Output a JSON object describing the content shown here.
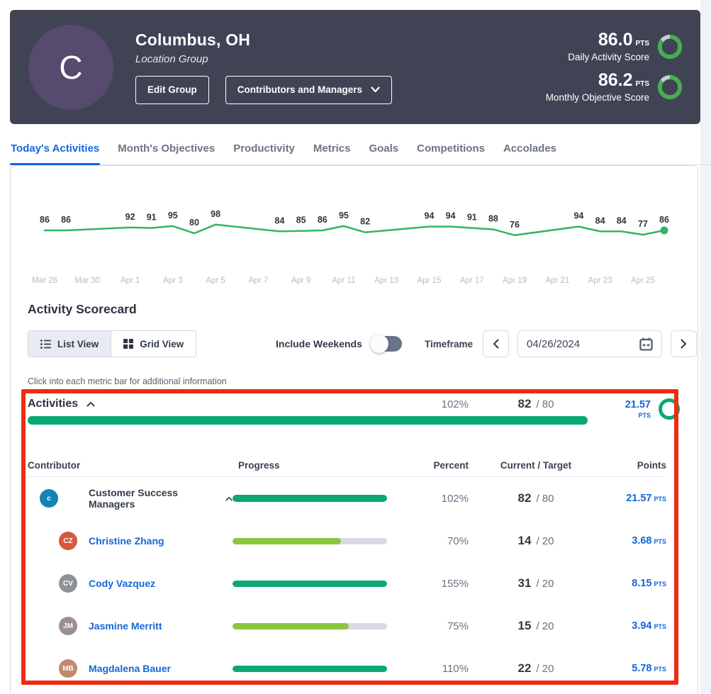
{
  "header": {
    "avatar_letter": "C",
    "title": "Columbus, OH",
    "subtitle": "Location Group",
    "edit_button": "Edit Group",
    "dropdown_button": "Contributors and Managers",
    "scores": [
      {
        "value": "86.0",
        "unit": "PTS",
        "label": "Daily Activity Score",
        "ring_percent": 86
      },
      {
        "value": "86.2",
        "unit": "PTS",
        "label": "Monthly Objective Score",
        "ring_percent": 86
      }
    ]
  },
  "tabs": [
    {
      "label": "Today's Activities",
      "active": true
    },
    {
      "label": "Month's Objectives",
      "active": false
    },
    {
      "label": "Productivity",
      "active": false
    },
    {
      "label": "Metrics",
      "active": false
    },
    {
      "label": "Goals",
      "active": false
    },
    {
      "label": "Competitions",
      "active": false
    },
    {
      "label": "Accolades",
      "active": false
    }
  ],
  "chart_data": {
    "type": "line",
    "x": [
      "Mar 28",
      "Mar 29",
      "Apr 1",
      "Apr 2",
      "Apr 3",
      "Apr 4",
      "Apr 5",
      "Apr 8",
      "Apr 9",
      "Apr 10",
      "Apr 11",
      "Apr 12",
      "Apr 15",
      "Apr 16",
      "Apr 17",
      "Apr 18",
      "Apr 19",
      "Apr 22",
      "Apr 23",
      "Apr 24",
      "Apr 25",
      "Apr 26"
    ],
    "day_offsets": [
      0,
      1,
      4,
      5,
      6,
      7,
      8,
      11,
      12,
      13,
      14,
      15,
      18,
      19,
      20,
      21,
      22,
      25,
      26,
      27,
      28,
      29
    ],
    "values": [
      86,
      86,
      92,
      91,
      95,
      80,
      98,
      84,
      85,
      86,
      95,
      82,
      94,
      94,
      91,
      88,
      76,
      94,
      84,
      84,
      77,
      86
    ],
    "axis_labels": [
      "Mar 28",
      "Mar 30",
      "Apr 1",
      "Apr 3",
      "Apr 5",
      "Apr 7",
      "Apr 9",
      "Apr 11",
      "Apr 13",
      "Apr 15",
      "Apr 17",
      "Apr 19",
      "Apr 21",
      "Apr 23",
      "Apr 25"
    ],
    "axis_day_offsets": [
      0,
      2,
      4,
      6,
      8,
      10,
      12,
      14,
      16,
      18,
      20,
      22,
      24,
      26,
      28
    ],
    "title": "",
    "xlabel": "",
    "ylabel": "",
    "ylim": [
      70,
      104
    ],
    "grid": false,
    "legend": "none",
    "line_color": "#34b366",
    "last_point_marker": true
  },
  "scorecard": {
    "title": "Activity Scorecard",
    "view_toggle": [
      {
        "label": "List View",
        "icon": "list-view-icon",
        "active": true
      },
      {
        "label": "Grid View",
        "icon": "grid-view-icon",
        "active": false
      }
    ],
    "include_weekends_label": "Include Weekends",
    "include_weekends_on": false,
    "timeframe_label": "Timeframe",
    "date_value": "04/26/2024",
    "hint": "Click into each metric bar for additional information"
  },
  "activities_section": {
    "title": "Activities",
    "percent": "102%",
    "current": "82",
    "target": "/ 80",
    "points": "21.57",
    "points_unit": "PTS",
    "ring_percent": 100,
    "table": {
      "headers": [
        "Contributor",
        "Progress",
        "Percent",
        "Current / Target",
        "Points"
      ],
      "rows": [
        {
          "name": "Customer Success Managers",
          "type": "group",
          "avatar_text": "c",
          "avatar_color": "#1583b5",
          "percent": "102%",
          "percent_num": 102,
          "current": "82",
          "target": "/ 80",
          "points": "21.57"
        },
        {
          "name": "Christine Zhang",
          "type": "person",
          "avatar_text": "CZ",
          "avatar_color": "#d4593d",
          "percent": "70%",
          "percent_num": 70,
          "current": "14",
          "target": "/ 20",
          "points": "3.68"
        },
        {
          "name": "Cody Vazquez",
          "type": "person",
          "avatar_text": "CV",
          "avatar_color": "#8b9298",
          "percent": "155%",
          "percent_num": 155,
          "current": "31",
          "target": "/ 20",
          "points": "8.15"
        },
        {
          "name": "Jasmine Merritt",
          "type": "person",
          "avatar_text": "JM",
          "avatar_color": "#9e8d96",
          "percent": "75%",
          "percent_num": 75,
          "current": "15",
          "target": "/ 20",
          "points": "3.94"
        },
        {
          "name": "Magdalena Bauer",
          "type": "person",
          "avatar_text": "MB",
          "avatar_color": "#c18a6f",
          "percent": "110%",
          "percent_num": 110,
          "current": "22",
          "target": "/ 20",
          "points": "5.78"
        }
      ]
    }
  },
  "colors": {
    "header_bg": "#3f4354",
    "avatar_purple": "#564a6e",
    "accent_blue": "#1467e0",
    "link_blue": "#1667d9",
    "points_blue": "#1565d8",
    "ring_green": "#45ae4e",
    "ring_track": "#c7ccd8",
    "bar_complete": "#0ca873",
    "bar_partial": "#8cc63f",
    "bar_track": "#d7dbe2",
    "red_annotation": "#ee2c12",
    "chart_label": "#2c3340",
    "axis_label": "#b5bcc8"
  },
  "icons": {
    "list_view": "list glyph (3 bulleted lines)",
    "grid_view": "grid glyph (2x2 squares)",
    "chevron_down": "v",
    "chevron_up": "^",
    "chevron_left": "<",
    "chevron_right": ">",
    "calendar": "calendar glyph",
    "score_ring": "donut ring"
  }
}
